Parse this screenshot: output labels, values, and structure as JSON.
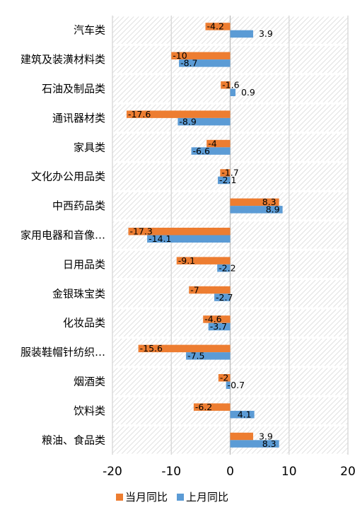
{
  "chart_data": {
    "type": "bar",
    "orientation": "horizontal",
    "categories": [
      "汽车类",
      "建筑及装潢材料类",
      "石油及制品类",
      "通讯器材类",
      "家具类",
      "文化办公用品类",
      "中西药品类",
      "家用电器和音像…",
      "日用品类",
      "金银珠宝类",
      "化妆品类",
      "服装鞋帽针纺织…",
      "烟酒类",
      "饮料类",
      "粮油、食品类"
    ],
    "series": [
      {
        "name": "当月同比",
        "color": "#ED7D31",
        "values": [
          -4.2,
          -10,
          -1.6,
          -17.6,
          -4,
          -1.7,
          8.3,
          -17.3,
          -9.1,
          -7,
          -4.6,
          -15.6,
          -2,
          -6.2,
          3.9
        ],
        "labels": [
          "-4.2",
          "-10",
          "-1.6",
          "-17.6",
          "-4",
          "-1.7",
          "8.3",
          "-17.3",
          "-9.1",
          "-7",
          "-4.6",
          "-15.6",
          "-2",
          "-6.2",
          "3.9"
        ]
      },
      {
        "name": "上月同比",
        "color": "#5B9BD5",
        "values": [
          3.9,
          -8.7,
          0.9,
          -8.9,
          -6.6,
          -2.1,
          8.9,
          -14.1,
          -2.2,
          -2.7,
          -3.7,
          -7.5,
          -0.7,
          4.1,
          8.3
        ],
        "labels": [
          "3.9",
          "-8.7",
          "0.9",
          "-8.9",
          "-6.6",
          "-2.1",
          "8.9",
          "-14.1",
          "-2.2",
          "-2.7",
          "-3.7",
          "-7.5",
          "-0.7",
          "4.1",
          "8.3"
        ]
      }
    ],
    "xlim": [
      -20,
      20
    ],
    "x_ticks": [
      "-20",
      "-10",
      "0",
      "10",
      "20"
    ],
    "grid": true,
    "legend_position": "bottom"
  }
}
